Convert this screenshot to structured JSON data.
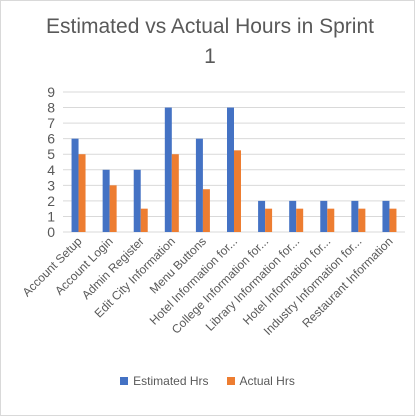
{
  "chart_data": {
    "type": "bar",
    "title": "Estimated vs Actual Hours in Sprint 1",
    "categories": [
      "Account Setup",
      "Account Login",
      "Admin Register",
      "Edit City Information",
      "Menu Buttons",
      "Hotel Information for...",
      "College Information for...",
      "Library Information for...",
      "Hotel Information for...",
      "Industry Information for...",
      "Restaurant Information"
    ],
    "series": [
      {
        "name": "Estimated Hrs",
        "color": "#4472c4",
        "values": [
          6,
          4,
          4,
          8,
          6,
          8,
          2,
          2,
          2,
          2,
          2
        ]
      },
      {
        "name": "Actual Hrs",
        "color": "#ed7d31",
        "values": [
          5,
          3,
          1.5,
          5,
          2.75,
          5.25,
          1.5,
          1.5,
          1.5,
          1.5,
          1.5
        ]
      }
    ],
    "xlabel": "",
    "ylabel": "",
    "ylim": [
      0,
      9
    ],
    "yticks": [
      0,
      1,
      2,
      3,
      4,
      5,
      6,
      7,
      8,
      9
    ],
    "grid": true,
    "legend": "bottom"
  }
}
